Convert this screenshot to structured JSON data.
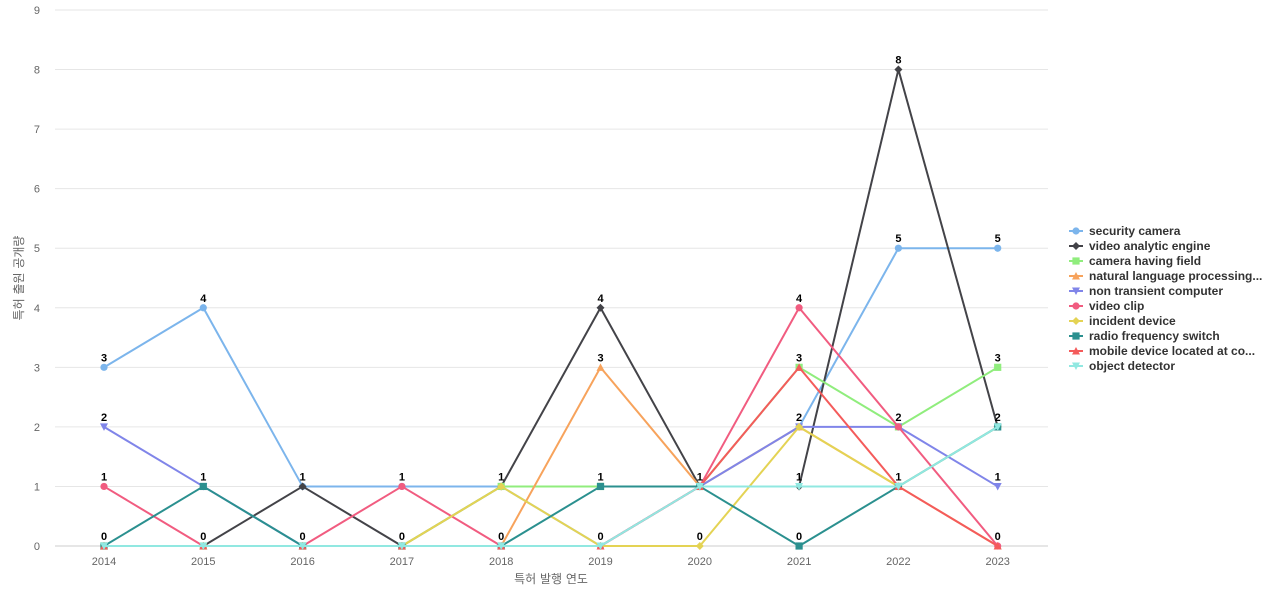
{
  "chart_data": {
    "type": "line",
    "xlabel": "특허 발행 연도",
    "ylabel": "특허 출원 공개량",
    "x": [
      "2014",
      "2015",
      "2016",
      "2017",
      "2018",
      "2019",
      "2020",
      "2021",
      "2022",
      "2023"
    ],
    "ylim": [
      0,
      9
    ],
    "yticks": [
      0,
      1,
      2,
      3,
      4,
      5,
      6,
      7,
      8,
      9
    ],
    "grid": true,
    "legend_position": "right",
    "series": [
      {
        "name": "security camera",
        "color": "#7cb5ec",
        "marker": "circle",
        "values": [
          3,
          4,
          1,
          1,
          1,
          0,
          1,
          2,
          5,
          5
        ]
      },
      {
        "name": "video analytic engine",
        "color": "#434348",
        "marker": "diamond",
        "values": [
          0,
          0,
          1,
          0,
          1,
          4,
          1,
          1,
          8,
          2
        ]
      },
      {
        "name": "camera having field",
        "color": "#90ed7d",
        "marker": "square",
        "values": [
          0,
          0,
          0,
          0,
          1,
          1,
          1,
          3,
          2,
          3
        ]
      },
      {
        "name": "natural language processing...",
        "color": "#f7a35c",
        "marker": "triangle",
        "values": [
          0,
          0,
          0,
          0,
          0,
          3,
          1,
          2,
          1,
          0
        ]
      },
      {
        "name": "non transient computer",
        "color": "#8085e9",
        "marker": "triangle-down",
        "values": [
          2,
          1,
          0,
          0,
          0,
          0,
          1,
          2,
          2,
          1
        ]
      },
      {
        "name": "video clip",
        "color": "#f15c80",
        "marker": "circle",
        "values": [
          1,
          0,
          0,
          1,
          0,
          0,
          1,
          4,
          2,
          0
        ]
      },
      {
        "name": "incident device",
        "color": "#e4d354",
        "marker": "diamond",
        "values": [
          0,
          0,
          0,
          0,
          1,
          0,
          0,
          2,
          1,
          2
        ]
      },
      {
        "name": "radio frequency switch",
        "color": "#2b908f",
        "marker": "square",
        "values": [
          0,
          1,
          0,
          0,
          0,
          1,
          1,
          0,
          1,
          2
        ]
      },
      {
        "name": "mobile device located at co...",
        "color": "#f45b5b",
        "marker": "triangle",
        "values": [
          0,
          0,
          0,
          0,
          0,
          0,
          1,
          3,
          1,
          0
        ]
      },
      {
        "name": "object detector",
        "color": "#91e8e1",
        "marker": "triangle-down",
        "values": [
          0,
          0,
          0,
          0,
          0,
          0,
          1,
          1,
          1,
          2
        ]
      }
    ],
    "data_labels": [
      {
        "x": "2014",
        "value": 3,
        "series": "security camera"
      },
      {
        "x": "2014",
        "value": 2,
        "series": "non transient computer"
      },
      {
        "x": "2014",
        "value": 1,
        "series": "video clip"
      },
      {
        "x": "2014",
        "value": 0,
        "series": "radio frequency switch"
      },
      {
        "x": "2015",
        "value": 4,
        "series": "security camera"
      },
      {
        "x": "2015",
        "value": 1,
        "series": "radio frequency switch"
      },
      {
        "x": "2015",
        "value": 0,
        "series": "mobile device located at co..."
      },
      {
        "x": "2016",
        "value": 1,
        "series": "security camera"
      },
      {
        "x": "2016",
        "value": 0,
        "series": "video clip"
      },
      {
        "x": "2017",
        "value": 1,
        "series": "video clip"
      },
      {
        "x": "2017",
        "value": 0,
        "series": "incident device"
      },
      {
        "x": "2018",
        "value": 1,
        "series": "incident device"
      },
      {
        "x": "2018",
        "value": 0,
        "series": "radio frequency switch"
      },
      {
        "x": "2019",
        "value": 4,
        "series": "video analytic engine"
      },
      {
        "x": "2019",
        "value": 3,
        "series": "natural language processing..."
      },
      {
        "x": "2019",
        "value": 1,
        "series": "radio frequency switch"
      },
      {
        "x": "2019",
        "value": 0,
        "series": "object detector"
      },
      {
        "x": "2020",
        "value": 1,
        "series": "video clip"
      },
      {
        "x": "2020",
        "value": 0,
        "series": "incident device"
      },
      {
        "x": "2021",
        "value": 4,
        "series": "video clip"
      },
      {
        "x": "2021",
        "value": 3,
        "series": "mobile device located at co..."
      },
      {
        "x": "2021",
        "value": 2,
        "series": "incident device"
      },
      {
        "x": "2021",
        "value": 1,
        "series": "object detector"
      },
      {
        "x": "2021",
        "value": 0,
        "series": "radio frequency switch"
      },
      {
        "x": "2022",
        "value": 8,
        "series": "video analytic engine"
      },
      {
        "x": "2022",
        "value": 5,
        "series": "security camera"
      },
      {
        "x": "2022",
        "value": 2,
        "series": "video clip"
      },
      {
        "x": "2022",
        "value": 1,
        "series": "object detector"
      },
      {
        "x": "2023",
        "value": 5,
        "series": "security camera"
      },
      {
        "x": "2023",
        "value": 3,
        "series": "camera having field"
      },
      {
        "x": "2023",
        "value": 2,
        "series": "radio frequency switch"
      },
      {
        "x": "2023",
        "value": 1,
        "series": "non transient computer"
      },
      {
        "x": "2023",
        "value": 0,
        "series": "video clip"
      }
    ]
  }
}
